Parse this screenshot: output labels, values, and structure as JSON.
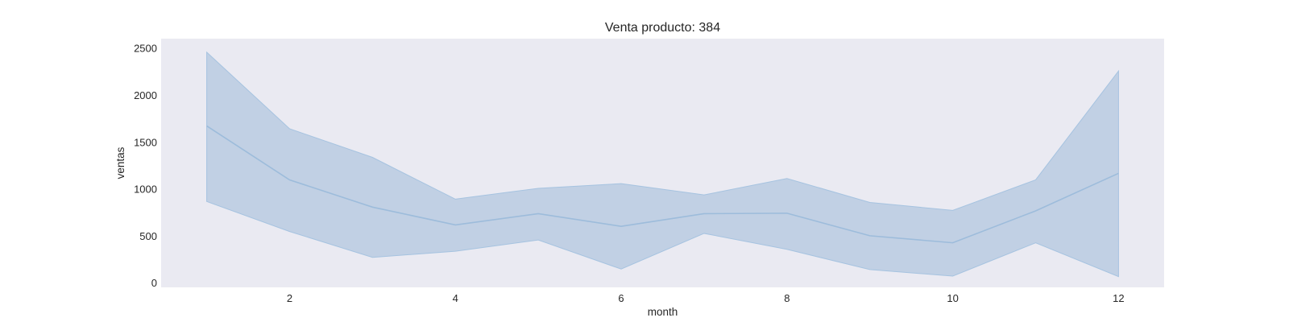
{
  "chart_data": {
    "type": "line",
    "title": "Venta producto: 384",
    "xlabel": "month",
    "ylabel": "ventas",
    "xlim": [
      0.45,
      12.55
    ],
    "ylim": [
      -50,
      2600
    ],
    "xticks": [
      2,
      4,
      6,
      8,
      10,
      12
    ],
    "yticks": [
      0,
      500,
      1000,
      1500,
      2000,
      2500
    ],
    "grid": false,
    "legend": "none",
    "series": [
      {
        "x": [
          1,
          2,
          3,
          4,
          5,
          6,
          7,
          8,
          9,
          10,
          11,
          12
        ],
        "values": [
          1670,
          1095,
          805,
          615,
          735,
          600,
          735,
          740,
          500,
          425,
          765,
          1165
        ],
        "ci_lower": [
          865,
          545,
          270,
          335,
          455,
          145,
          525,
          355,
          140,
          70,
          425,
          65
        ],
        "ci_upper": [
          2455,
          1640,
          1335,
          890,
          1005,
          1055,
          935,
          1110,
          855,
          770,
          1095,
          2255
        ]
      }
    ],
    "colors": {
      "plot_background": "#eaeaf2",
      "line": "#9dbcdb",
      "band_fill": "#9fbad8",
      "band_edge": "#a6c3e0"
    }
  }
}
